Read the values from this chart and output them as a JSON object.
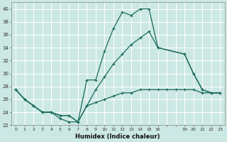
{
  "xlabel": "Humidex (Indice chaleur)",
  "bg_color": "#cce8e4",
  "grid_color": "#b0d8d0",
  "line_color": "#1a6b5a",
  "xlim": [
    -0.5,
    23.5
  ],
  "ylim": [
    22,
    41
  ],
  "yticks": [
    22,
    24,
    26,
    28,
    30,
    32,
    34,
    36,
    38,
    40
  ],
  "xtick_labels": [
    "0",
    "1",
    "2",
    "3",
    "4",
    "5",
    "6",
    "7",
    "8",
    "9",
    "10",
    "11",
    "12",
    "13",
    "14",
    "15",
    "16",
    "",
    "",
    "19",
    "20",
    "21",
    "22",
    "23"
  ],
  "xtick_positions": [
    0,
    1,
    2,
    3,
    4,
    5,
    6,
    7,
    8,
    9,
    10,
    11,
    12,
    13,
    14,
    15,
    16,
    17,
    18,
    19,
    20,
    21,
    22,
    23
  ],
  "series1_x": [
    0,
    1,
    2,
    3,
    4,
    5,
    6,
    7,
    8,
    9,
    10,
    11,
    12,
    13,
    14,
    15,
    16,
    19,
    20,
    21,
    22,
    23
  ],
  "series1_y": [
    27.5,
    26.0,
    25.0,
    24.0,
    24.0,
    23.0,
    22.5,
    22.5,
    29.0,
    29.0,
    33.5,
    37.0,
    39.5,
    39.0,
    40.0,
    40.0,
    34.0,
    33.0,
    30.0,
    27.5,
    27.0,
    27.0
  ],
  "series2_x": [
    0,
    1,
    2,
    3,
    4,
    5,
    6,
    7,
    8,
    9,
    10,
    11,
    12,
    13,
    14,
    15,
    16,
    19,
    20,
    21,
    22,
    23
  ],
  "series2_y": [
    27.5,
    26.0,
    25.0,
    24.0,
    24.0,
    23.5,
    23.5,
    22.5,
    25.0,
    27.5,
    29.5,
    31.5,
    33.0,
    34.5,
    35.5,
    36.5,
    34.0,
    33.0,
    30.0,
    27.5,
    27.0,
    27.0
  ],
  "series3_x": [
    0,
    1,
    2,
    3,
    4,
    5,
    6,
    7,
    8,
    9,
    10,
    11,
    12,
    13,
    14,
    15,
    16,
    17,
    18,
    19,
    20,
    21,
    22,
    23
  ],
  "series3_y": [
    27.5,
    26.0,
    25.0,
    24.0,
    24.0,
    23.5,
    23.5,
    22.5,
    25.0,
    25.5,
    26.0,
    26.5,
    27.0,
    27.0,
    27.5,
    27.5,
    27.5,
    27.5,
    27.5,
    27.5,
    27.5,
    27.0,
    27.0,
    27.0
  ]
}
